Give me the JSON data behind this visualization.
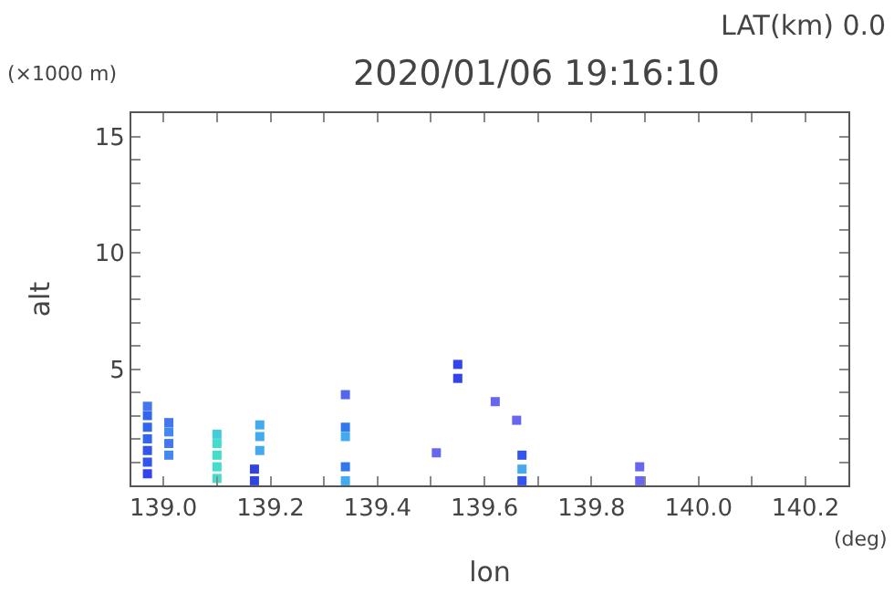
{
  "chart_data": {
    "type": "scatter",
    "title": "2020/01/06 19:16:10",
    "xlabel": "lon",
    "ylabel": "alt",
    "annotations": [
      "LAT(km) 0.0",
      "(×1000 m)",
      "(deg)"
    ],
    "marker": "square",
    "x": [
      138.97,
      138.97,
      138.97,
      138.97,
      138.97,
      138.97,
      138.97,
      139.01,
      139.01,
      139.01,
      139.01,
      139.1,
      139.1,
      139.1,
      139.1,
      139.1,
      139.17,
      139.17,
      139.18,
      139.18,
      139.18,
      139.34,
      139.34,
      139.34,
      139.34,
      139.34,
      139.55,
      139.55,
      139.67,
      139.67,
      139.67,
      139.62,
      139.66,
      139.89,
      139.89,
      139.51
    ],
    "values": [
      0.5,
      1.0,
      1.5,
      2.0,
      2.5,
      3.0,
      3.4,
      1.3,
      1.8,
      2.3,
      2.7,
      0.3,
      0.8,
      1.3,
      1.8,
      2.2,
      0.2,
      0.7,
      1.5,
      2.1,
      2.6,
      0.2,
      0.8,
      2.1,
      2.5,
      3.9,
      4.6,
      5.2,
      0.2,
      0.7,
      1.3,
      3.6,
      2.8,
      0.2,
      0.8,
      1.4
    ],
    "colors": [
      "#3344ee",
      "#3355ee",
      "#3355ee",
      "#3366ee",
      "#3366ee",
      "#3366ee",
      "#4477ee",
      "#4488ee",
      "#4477ee",
      "#4488ee",
      "#4477ee",
      "#44ddcc",
      "#44ddcc",
      "#44ddcc",
      "#44ddcc",
      "#44ccdd",
      "#3344dd",
      "#3344dd",
      "#44aaee",
      "#44aaee",
      "#44aaee",
      "#44aaee",
      "#3377ee",
      "#44aaee",
      "#3377ee",
      "#5566ee",
      "#3344ee",
      "#3344ee",
      "#3355ee",
      "#44aaee",
      "#3355ee",
      "#6666ee",
      "#6666ee",
      "#6666ee",
      "#6666ee",
      "#6666ee"
    ],
    "xlim": [
      138.94,
      140.28
    ],
    "ylim": [
      0,
      16
    ],
    "xticks": [
      {
        "value": 139.0,
        "label": "139.0"
      },
      {
        "value": 139.1,
        "label": null
      },
      {
        "value": 139.2,
        "label": "139.2"
      },
      {
        "value": 139.3,
        "label": null
      },
      {
        "value": 139.4,
        "label": "139.4"
      },
      {
        "value": 139.5,
        "label": null
      },
      {
        "value": 139.6,
        "label": "139.6"
      },
      {
        "value": 139.7,
        "label": null
      },
      {
        "value": 139.8,
        "label": "139.8"
      },
      {
        "value": 139.9,
        "label": null
      },
      {
        "value": 140.0,
        "label": "140.0"
      },
      {
        "value": 140.1,
        "label": null
      },
      {
        "value": 140.2,
        "label": "140.2"
      }
    ],
    "yticks": [
      {
        "value": 1,
        "label": null
      },
      {
        "value": 2,
        "label": null
      },
      {
        "value": 3,
        "label": null
      },
      {
        "value": 4,
        "label": null
      },
      5,
      {
        "value": 6,
        "label": null
      },
      {
        "value": 7,
        "label": null
      },
      {
        "value": 8,
        "label": null
      },
      {
        "value": 9,
        "label": null
      },
      10,
      {
        "value": 11,
        "label": null
      },
      {
        "value": 12,
        "label": null
      },
      {
        "value": 13,
        "label": null
      },
      {
        "value": 14,
        "label": null
      },
      15
    ]
  }
}
